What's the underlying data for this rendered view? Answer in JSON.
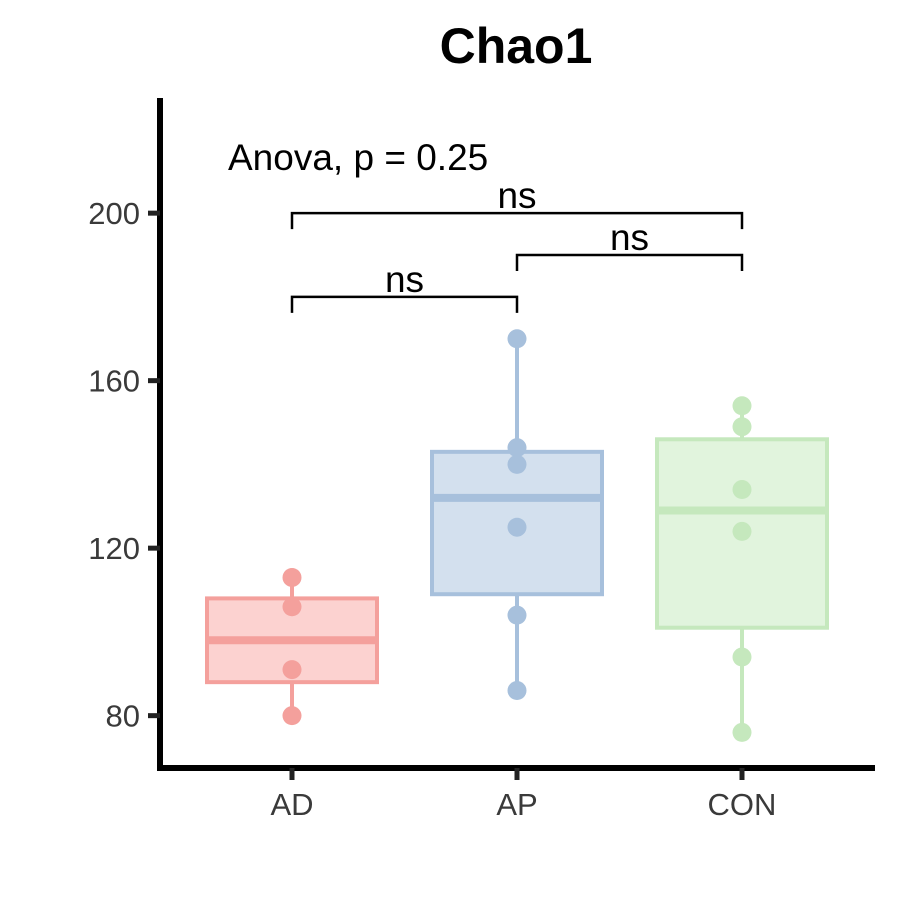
{
  "chart_data": {
    "type": "box",
    "title": "Chao1",
    "xlabel": "",
    "ylabel": "",
    "ylim": [
      67.5,
      227.5
    ],
    "yticks": [
      80,
      120,
      160,
      200
    ],
    "categories": [
      "AD",
      "AP",
      "CON"
    ],
    "groups": [
      {
        "name": "AD",
        "color": "#F4A09C",
        "fill": "#FCD2D0",
        "q1": 88,
        "median": 98,
        "q3": 108,
        "whisker_low": 80,
        "whisker_high": 113,
        "points": [
          113,
          106,
          91,
          80
        ]
      },
      {
        "name": "AP",
        "color": "#A7C0DC",
        "fill": "#D3E0EE",
        "q1": 109,
        "median": 132,
        "q3": 143,
        "whisker_low": 86,
        "whisker_high": 170,
        "points": [
          170,
          144,
          140,
          125,
          104,
          86
        ]
      },
      {
        "name": "CON",
        "color": "#C5E8BD",
        "fill": "#E1F4DD",
        "q1": 101,
        "median": 129,
        "q3": 146,
        "whisker_low": 76,
        "whisker_high": 154,
        "points": [
          154,
          149,
          134,
          124,
          94,
          76
        ]
      }
    ],
    "annotation": "Anova, p = 0.25",
    "comparisons": [
      {
        "from": "AD",
        "to": "AP",
        "y": 180,
        "label": "ns"
      },
      {
        "from": "AP",
        "to": "CON",
        "y": 190,
        "label": "ns"
      },
      {
        "from": "AD",
        "to": "CON",
        "y": 200,
        "label": "ns"
      }
    ]
  }
}
